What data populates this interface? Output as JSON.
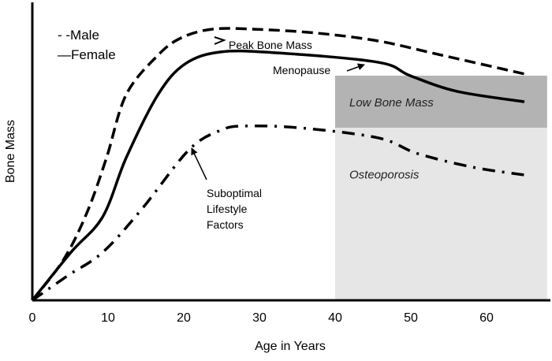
{
  "chart_data": {
    "type": "line",
    "title": "",
    "xlabel": "Age in Years",
    "ylabel": "Bone Mass",
    "xlim": [
      0,
      68
    ],
    "ylim": [
      0,
      100
    ],
    "xticks": [
      0,
      10,
      20,
      30,
      40,
      50,
      60
    ],
    "xtick_labels": [
      "0",
      "10",
      "20",
      "30",
      "40",
      "50",
      "60"
    ],
    "grid": false,
    "legend": {
      "placement": "top-left",
      "entries": [
        "- -Male",
        "—Female"
      ]
    },
    "series": [
      {
        "name": "Male",
        "style": "dashed",
        "x": [
          0,
          4.1,
          7.2,
          9.8,
          12.4,
          16.6,
          19.7,
          23.8,
          29.1,
          37.4,
          45.7,
          54.1,
          65.5
        ],
        "y": [
          0,
          13.6,
          29.5,
          48.1,
          69.4,
          82.7,
          88.6,
          91.5,
          91.5,
          90.2,
          87.5,
          82.7,
          76.1
        ]
      },
      {
        "name": "Female",
        "style": "solid",
        "x": [
          0,
          5.1,
          9.3,
          12.4,
          16.6,
          20.2,
          24.9,
          32.2,
          45.7,
          49.9,
          56.1,
          65
        ],
        "y": [
          0,
          16.2,
          28.2,
          48.1,
          69.4,
          79.8,
          83.8,
          83.5,
          80.3,
          75.8,
          70.5,
          67.0
        ]
      },
      {
        "name": "Suboptimal Lifestyle Factors",
        "style": "dash-dot",
        "x": [
          0,
          4.6,
          9.3,
          14.5,
          20.7,
          24.9,
          28,
          35.3,
          45.7,
          50.9,
          58.2,
          65
        ],
        "y": [
          0,
          8.2,
          16.2,
          30.9,
          50.8,
          57.4,
          58.8,
          58.2,
          54.8,
          49.5,
          44.9,
          42.3
        ]
      }
    ],
    "regions": [
      {
        "label": "Low Bone Mass",
        "x": [
          40,
          68
        ],
        "y": [
          58.2,
          75.8
        ],
        "color": "#b3b3b3"
      },
      {
        "label": "Osteoporosis",
        "x": [
          40,
          68
        ],
        "y": [
          0,
          58.2
        ],
        "color": "#e6e6e6"
      }
    ],
    "annotations": [
      {
        "text": "Peak Bone Mass",
        "target": [
          24,
          88
        ]
      },
      {
        "text": "Menopause",
        "target": [
          44,
          79
        ]
      },
      {
        "text": "Suboptimal Lifestyle Factors",
        "lines": [
          "Suboptimal",
          "Lifestyle",
          "Factors"
        ],
        "target": [
          20.7,
          52
        ]
      }
    ]
  }
}
